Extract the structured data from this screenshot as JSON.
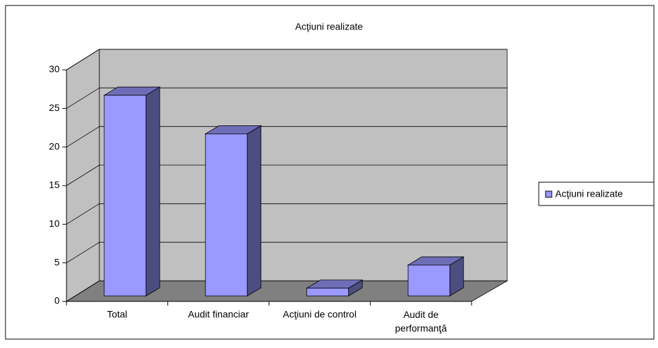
{
  "chart_data": {
    "type": "bar",
    "title": "Acţiuni realizate",
    "categories": [
      "Total",
      "Audit financiar",
      "Acţiuni de control",
      "Audit de performanţă"
    ],
    "series": [
      {
        "name": "Acţiuni realizate",
        "color": "#9999ff",
        "values": [
          26,
          21,
          1,
          4
        ]
      }
    ],
    "ylim": [
      0,
      30
    ],
    "yticks": [
      0,
      5,
      10,
      15,
      20,
      25,
      30
    ],
    "grid": true,
    "legend": "right"
  }
}
